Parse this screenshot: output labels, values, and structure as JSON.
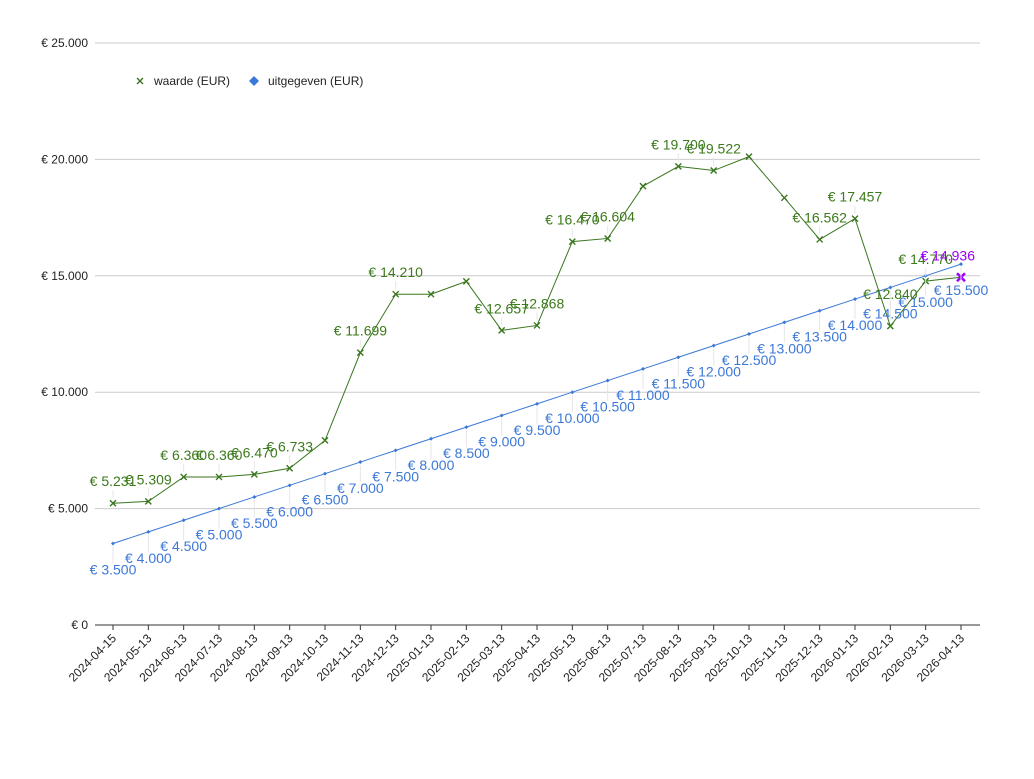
{
  "chart_data": {
    "type": "line",
    "title": "",
    "xlabel": "",
    "ylabel": "",
    "ylim": [
      0,
      25000
    ],
    "yticks": [
      0,
      5000,
      10000,
      15000,
      20000,
      25000
    ],
    "ytick_labels": [
      "€ 0",
      "€ 5.000",
      "€ 10.000",
      "€ 15.000",
      "€ 20.000",
      "€ 25.000"
    ],
    "grid": true,
    "legend_position": "top-left",
    "categories": [
      "2024-04-15",
      "2024-05-13",
      "2024-06-13",
      "2024-07-13",
      "2024-08-13",
      "2024-09-13",
      "2024-10-13",
      "2024-11-13",
      "2024-12-13",
      "2025-01-13",
      "2025-02-13",
      "2025-03-13",
      "2025-04-13",
      "2025-05-13",
      "2025-06-13",
      "2025-07-13",
      "2025-08-13",
      "2025-09-13",
      "2025-10-13",
      "2025-11-13",
      "2025-12-13",
      "2026-01-13",
      "2026-02-13",
      "2026-03-13",
      "2026-04-13"
    ],
    "series": [
      {
        "name": "waarde (EUR)",
        "color": "#38761d",
        "marker": "x",
        "values": [
          5231,
          5309,
          6360,
          6360,
          6470,
          6733,
          7930,
          11699,
          14210,
          14210,
          14760,
          12657,
          12868,
          16470,
          16604,
          18850,
          19700,
          19522,
          20120,
          18350,
          16562,
          17457,
          12840,
          14770,
          14936
        ],
        "labels": [
          "€ 5.231",
          "€ 5.309",
          "€ 6.360",
          "€ 6.360",
          "€ 6.470",
          "€ 6.733",
          null,
          "€ 11.699",
          "€ 14.210",
          null,
          null,
          "€ 12.657",
          "€ 12.868",
          "€ 16.470",
          "€ 16.604",
          null,
          "€ 19.700",
          "€ 19.522",
          null,
          null,
          "€ 16.562",
          "€ 17.457",
          "€ 12.840",
          "€ 14.770",
          null
        ]
      },
      {
        "name": "uitgegeven (EUR)",
        "color": "#3c78d8",
        "marker": "diamond",
        "values": [
          3500,
          4000,
          4500,
          5000,
          5500,
          6000,
          6500,
          7000,
          7500,
          8000,
          8500,
          9000,
          9500,
          10000,
          10500,
          11000,
          11500,
          12000,
          12500,
          13000,
          13500,
          14000,
          14500,
          15000,
          15500
        ],
        "labels": [
          "€ 3.500",
          "€ 4.000",
          "€ 4.500",
          "€ 5.000",
          "€ 5.500",
          "€ 6.000",
          "€ 6.500",
          "€ 7.000",
          "€ 7.500",
          "€ 8.000",
          "€ 8.500",
          "€ 9.000",
          "€ 9.500",
          "€ 10.000",
          "€ 10.500",
          "€ 11.000",
          "€ 11.500",
          "€ 12.000",
          "€ 12.500",
          "€ 13.000",
          "€ 13.500",
          "€ 14.000",
          "€ 14.500",
          "€ 15.000",
          "€ 15.500"
        ]
      }
    ],
    "highlight": {
      "index": 24,
      "value": 14936,
      "label": "€ 14.936",
      "color": "#9900ff"
    }
  }
}
